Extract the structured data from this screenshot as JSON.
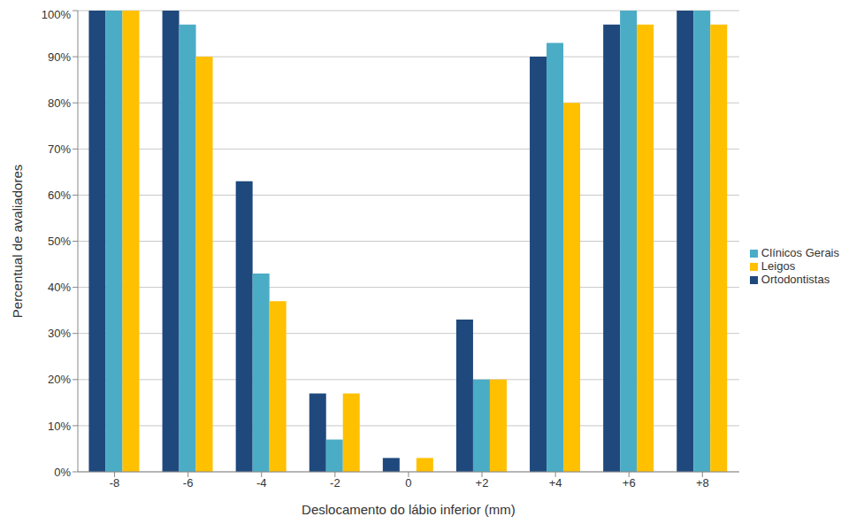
{
  "chart_data": {
    "type": "bar",
    "x_label": "Deslocamento do lábio inferior  (mm)",
    "y_label": "Percentual de avaliadores",
    "categories": [
      "-8",
      "-6",
      "-4",
      "-2",
      "0",
      "+2",
      "+4",
      "+6",
      "+8"
    ],
    "series": [
      {
        "name": "Ortodontistas",
        "color": "#1f497d",
        "values": [
          100,
          100,
          63,
          17,
          3,
          33,
          90,
          97,
          100
        ]
      },
      {
        "name": "Clínicos Gerais",
        "color": "#4bacc6",
        "values": [
          100,
          97,
          43,
          7,
          0,
          20,
          93,
          100,
          100
        ]
      },
      {
        "name": "Leigos",
        "color": "#ffc000",
        "values": [
          100,
          90,
          37,
          17,
          3,
          20,
          80,
          97,
          97
        ]
      }
    ],
    "ylim": [
      0,
      100
    ],
    "yticks": [
      {
        "value": 0,
        "label": "0%"
      },
      {
        "value": 10,
        "label": "10%"
      },
      {
        "value": 20,
        "label": "20%"
      },
      {
        "value": 30,
        "label": "30%"
      },
      {
        "value": 40,
        "label": "40%"
      },
      {
        "value": 50,
        "label": "50%"
      },
      {
        "value": 60,
        "label": "60%"
      },
      {
        "value": 70,
        "label": "70%"
      },
      {
        "value": 80,
        "label": "80%"
      },
      {
        "value": 90,
        "label": "90%"
      },
      {
        "value": 100,
        "label": "100%"
      }
    ],
    "grid": true,
    "legend": "right"
  }
}
